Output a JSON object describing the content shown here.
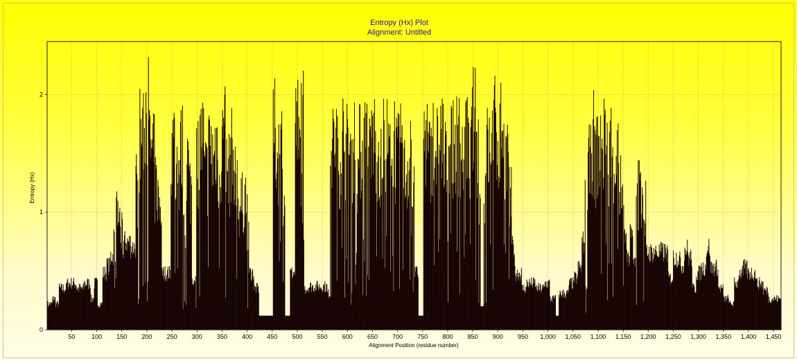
{
  "chart_data": {
    "type": "bar",
    "title": "Entropy (Hx) Plot",
    "subtitle": "Alignment: Untitled",
    "xlabel": "Alignment Position (residue number)",
    "ylabel": "Entropy (Hx)",
    "xlim": [
      1,
      1465
    ],
    "ylim": [
      0,
      2.45
    ],
    "x_ticks": [
      50,
      100,
      150,
      200,
      250,
      300,
      350,
      400,
      450,
      500,
      550,
      600,
      650,
      700,
      750,
      800,
      850,
      900,
      950,
      1000,
      1050,
      1100,
      1150,
      1200,
      1250,
      1300,
      1350,
      1400,
      1450
    ],
    "x_tick_labels": [
      "50",
      "100",
      "150",
      "200",
      "250",
      "300",
      "350",
      "400",
      "450",
      "500",
      "550",
      "600",
      "650",
      "700",
      "750",
      "800",
      "850",
      "900",
      "950",
      "1,000",
      "1,050",
      "1,100",
      "1,150",
      "1,200",
      "1,250",
      "1,300",
      "1,350",
      "1,400",
      "1,450"
    ],
    "y_ticks": [
      0,
      1,
      2
    ],
    "y_tick_labels": [
      "0",
      "1",
      "2"
    ],
    "grid": true,
    "bar_color": "#000000",
    "bar_edge_color": "#6b0000",
    "segments": [
      [
        1,
        0.25
      ],
      [
        12,
        0.3
      ],
      [
        18,
        0.25
      ],
      [
        25,
        0.4
      ],
      [
        40,
        0.45
      ],
      [
        60,
        0.4
      ],
      [
        75,
        0.45
      ],
      [
        88,
        0.3
      ],
      [
        95,
        0.45
      ],
      [
        102,
        0.25
      ],
      [
        112,
        0.55
      ],
      [
        120,
        0.62
      ],
      [
        128,
        0.72
      ],
      [
        134,
        0.95
      ],
      [
        138,
        1.2
      ],
      [
        142,
        1.25
      ],
      [
        148,
        1.0
      ],
      [
        154,
        0.85
      ],
      [
        168,
        0.8
      ],
      [
        178,
        1.55
      ],
      [
        184,
        2.1
      ],
      [
        192,
        2.2
      ],
      [
        198,
        2.4
      ],
      [
        204,
        2.0
      ],
      [
        210,
        1.85
      ],
      [
        216,
        1.55
      ],
      [
        222,
        1.4
      ],
      [
        230,
        0.55
      ],
      [
        242,
        0.55
      ],
      [
        248,
        2.05
      ],
      [
        256,
        1.7
      ],
      [
        266,
        1.95
      ],
      [
        272,
        1.0
      ],
      [
        278,
        1.85
      ],
      [
        284,
        1.55
      ],
      [
        290,
        0.5
      ],
      [
        298,
        1.85
      ],
      [
        306,
        2.05
      ],
      [
        314,
        1.7
      ],
      [
        322,
        1.95
      ],
      [
        330,
        1.85
      ],
      [
        336,
        2.05
      ],
      [
        342,
        1.8
      ],
      [
        350,
        2.1
      ],
      [
        358,
        1.7
      ],
      [
        366,
        1.9
      ],
      [
        374,
        1.6
      ],
      [
        382,
        1.35
      ],
      [
        392,
        1.45
      ],
      [
        398,
        1.2
      ],
      [
        404,
        0.55
      ],
      [
        414,
        0.4
      ],
      [
        424,
        0.12
      ],
      [
        452,
        2.15
      ],
      [
        458,
        1.9
      ],
      [
        464,
        2.0
      ],
      [
        470,
        1.6
      ],
      [
        476,
        0.12
      ],
      [
        486,
        0.55
      ],
      [
        496,
        2.2
      ],
      [
        502,
        1.9
      ],
      [
        508,
        2.35
      ],
      [
        514,
        0.4
      ],
      [
        522,
        0.42
      ],
      [
        548,
        0.42
      ],
      [
        560,
        0.35
      ],
      [
        566,
        1.95
      ],
      [
        572,
        2.05
      ],
      [
        580,
        1.85
      ],
      [
        588,
        2.1
      ],
      [
        596,
        1.95
      ],
      [
        604,
        1.9
      ],
      [
        612,
        2.05
      ],
      [
        618,
        1.75
      ],
      [
        624,
        1.95
      ],
      [
        632,
        2.05
      ],
      [
        640,
        1.85
      ],
      [
        648,
        2.1
      ],
      [
        656,
        1.95
      ],
      [
        664,
        1.75
      ],
      [
        672,
        2.05
      ],
      [
        680,
        1.9
      ],
      [
        688,
        2.1
      ],
      [
        696,
        1.85
      ],
      [
        704,
        2.05
      ],
      [
        712,
        1.7
      ],
      [
        720,
        1.85
      ],
      [
        728,
        1.4
      ],
      [
        734,
        0.55
      ],
      [
        742,
        0.12
      ],
      [
        752,
        2.1
      ],
      [
        760,
        1.85
      ],
      [
        768,
        2.05
      ],
      [
        776,
        1.95
      ],
      [
        784,
        2.1
      ],
      [
        792,
        1.8
      ],
      [
        800,
        2.1
      ],
      [
        808,
        1.95
      ],
      [
        816,
        2.05
      ],
      [
        824,
        1.9
      ],
      [
        832,
        2.15
      ],
      [
        840,
        1.85
      ],
      [
        848,
        2.25
      ],
      [
        856,
        1.95
      ],
      [
        862,
        1.35
      ],
      [
        866,
        0.2
      ],
      [
        872,
        1.6
      ],
      [
        878,
        1.95
      ],
      [
        884,
        2.05
      ],
      [
        890,
        2.2
      ],
      [
        898,
        2.05
      ],
      [
        906,
        2.2
      ],
      [
        914,
        1.9
      ],
      [
        922,
        1.4
      ],
      [
        928,
        0.8
      ],
      [
        934,
        0.55
      ],
      [
        948,
        0.4
      ],
      [
        958,
        0.45
      ],
      [
        976,
        0.4
      ],
      [
        994,
        0.45
      ],
      [
        1004,
        0.3
      ],
      [
        1016,
        0.12
      ],
      [
        1022,
        0.35
      ],
      [
        1042,
        0.45
      ],
      [
        1052,
        0.5
      ],
      [
        1060,
        0.6
      ],
      [
        1068,
        0.85
      ],
      [
        1074,
        1.3
      ],
      [
        1080,
        1.75
      ],
      [
        1086,
        2.05
      ],
      [
        1092,
        1.85
      ],
      [
        1098,
        1.95
      ],
      [
        1104,
        1.85
      ],
      [
        1110,
        2.05
      ],
      [
        1116,
        1.9
      ],
      [
        1122,
        2.0
      ],
      [
        1130,
        1.85
      ],
      [
        1136,
        1.95
      ],
      [
        1142,
        1.55
      ],
      [
        1148,
        1.3
      ],
      [
        1152,
        0.9
      ],
      [
        1158,
        0.7
      ],
      [
        1164,
        0.9
      ],
      [
        1170,
        0.65
      ],
      [
        1176,
        1.3
      ],
      [
        1180,
        1.5
      ],
      [
        1186,
        1.55
      ],
      [
        1192,
        1.3
      ],
      [
        1196,
        0.75
      ],
      [
        1204,
        0.75
      ],
      [
        1240,
        0.5
      ],
      [
        1250,
        0.7
      ],
      [
        1264,
        0.62
      ],
      [
        1272,
        0.78
      ],
      [
        1280,
        0.7
      ],
      [
        1288,
        0.4
      ],
      [
        1296,
        0.55
      ],
      [
        1306,
        0.6
      ],
      [
        1316,
        0.8
      ],
      [
        1324,
        0.6
      ],
      [
        1340,
        0.4
      ],
      [
        1350,
        0.3
      ],
      [
        1362,
        0.25
      ],
      [
        1372,
        0.45
      ],
      [
        1380,
        0.55
      ],
      [
        1390,
        0.6
      ],
      [
        1398,
        0.55
      ],
      [
        1416,
        0.45
      ],
      [
        1430,
        0.38
      ],
      [
        1440,
        0.3
      ],
      [
        1465,
        0.3
      ]
    ]
  }
}
